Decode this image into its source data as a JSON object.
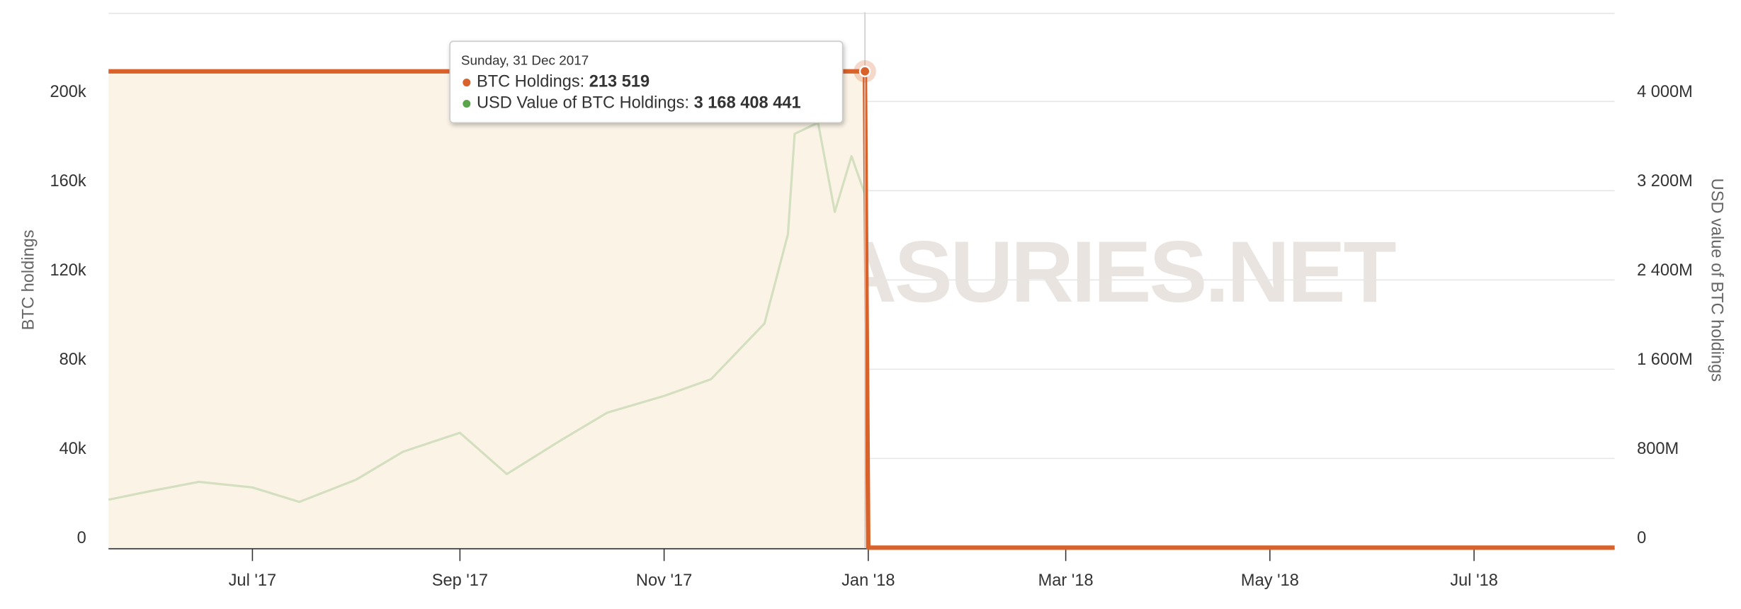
{
  "chart_data": {
    "type": "line",
    "watermark": "BITCOINTREASURIES.NET",
    "y_label": "BTC holdings",
    "y2_label": "USD value of BTC holdings",
    "x": [
      "2017-05-19",
      "2017-06-01",
      "2017-06-15",
      "2017-07-01",
      "2017-07-15",
      "2017-08-01",
      "2017-08-15",
      "2017-09-01",
      "2017-09-15",
      "2017-10-01",
      "2017-10-15",
      "2017-11-01",
      "2017-11-15",
      "2017-12-01",
      "2017-12-08",
      "2017-12-10",
      "2017-12-17",
      "2017-12-22",
      "2017-12-27",
      "2017-12-31",
      "2018-01-01",
      "2018-08-12"
    ],
    "xlim": [
      "2017-05-19",
      "2018-08-12"
    ],
    "xticks": [
      {
        "value": "2017-07-01",
        "label": "Jul '17"
      },
      {
        "value": "2017-09-01",
        "label": "Sep '17"
      },
      {
        "value": "2017-11-01",
        "label": "Nov '17"
      },
      {
        "value": "2018-01-01",
        "label": "Jan '18"
      },
      {
        "value": "2018-03-01",
        "label": "Mar '18"
      },
      {
        "value": "2018-05-01",
        "label": "May '18"
      },
      {
        "value": "2018-07-01",
        "label": "Jul '18"
      }
    ],
    "ylim": [
      0,
      240000
    ],
    "yticks": [
      0,
      {
        "value": 40000,
        "label": "40k"
      },
      {
        "value": 80000,
        "label": "80k"
      },
      {
        "value": 120000,
        "label": "120k"
      },
      {
        "value": 160000,
        "label": "160k"
      },
      {
        "value": 200000,
        "label": "200k"
      }
    ],
    "y2lim": [
      0,
      4800000000
    ],
    "y2ticks": [
      0,
      {
        "value": 800000000,
        "label": "800M"
      },
      {
        "value": 1600000000,
        "label": "1 600M"
      },
      {
        "value": 2400000000,
        "label": "2 400M"
      },
      {
        "value": 3200000000,
        "label": "3 200M"
      },
      {
        "value": 4000000000,
        "label": "4 000M"
      }
    ],
    "grid": true,
    "tooltip_date": "Sunday, 31 Dec 2017",
    "series": [
      {
        "name": "BTC Holdings",
        "color": "#d9622b",
        "fill": "#fbf3e6",
        "values": [
          213519,
          213519,
          213519,
          213519,
          213519,
          213519,
          213519,
          213519,
          213519,
          213519,
          213519,
          213519,
          213519,
          213519,
          213519,
          213519,
          213519,
          213519,
          213519,
          213519,
          0,
          0
        ],
        "value_labels": [
          null,
          null,
          null,
          null,
          null,
          null,
          null,
          null,
          null,
          null,
          null,
          null,
          null,
          null,
          null,
          null,
          null,
          null,
          null,
          "213 519",
          null,
          null
        ]
      },
      {
        "name": "USD Value of BTC Holdings",
        "color": "#5aa54a",
        "axis": "y2",
        "values": [
          430000000,
          510000000,
          590000000,
          540000000,
          410000000,
          610000000,
          860000000,
          1030000000,
          660000000,
          960000000,
          1210000000,
          1360000000,
          1510000000,
          2010000000,
          2810000000,
          3710000000,
          3810000000,
          3010000000,
          3510000000,
          3168408441,
          null,
          null
        ],
        "value_labels": [
          null,
          null,
          null,
          null,
          null,
          null,
          null,
          null,
          null,
          null,
          null,
          null,
          null,
          null,
          null,
          null,
          null,
          null,
          null,
          "3 168 408 441",
          null,
          null
        ]
      }
    ]
  }
}
